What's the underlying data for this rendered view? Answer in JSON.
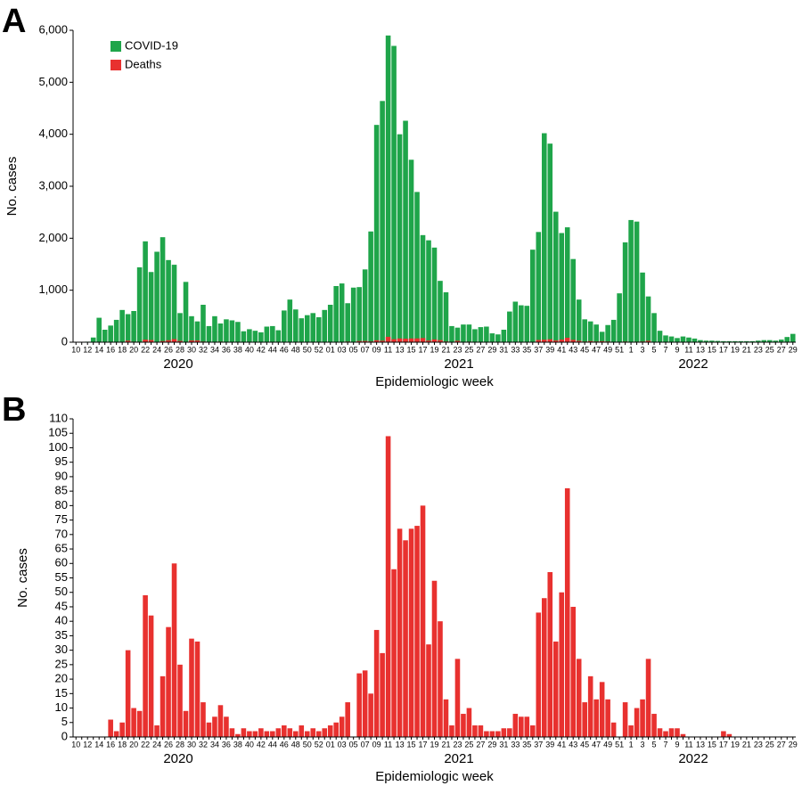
{
  "chart_data": [
    {
      "type": "bar",
      "panel_label": "A",
      "y_label": "No. cases",
      "x_label": "Epidemiologic week",
      "years": [
        "2020",
        "2021",
        "2022"
      ],
      "legend": "upper left",
      "categories": [
        "10",
        null,
        "12",
        null,
        "14",
        null,
        "16",
        null,
        "18",
        null,
        "20",
        null,
        "22",
        null,
        "24",
        null,
        "26",
        null,
        "28",
        null,
        "30",
        null,
        "32",
        null,
        "34",
        null,
        "36",
        null,
        "38",
        null,
        "40",
        null,
        "42",
        null,
        "44",
        null,
        "46",
        null,
        "48",
        null,
        "50",
        null,
        "52",
        null,
        "01",
        null,
        "03",
        null,
        "05",
        null,
        "07",
        null,
        "09",
        null,
        "11",
        null,
        "13",
        null,
        "15",
        null,
        "17",
        null,
        "19",
        null,
        "21",
        null,
        "23",
        null,
        "25",
        null,
        "27",
        null,
        "29",
        null,
        "31",
        null,
        "33",
        null,
        "35",
        null,
        "37",
        null,
        "39",
        null,
        "41",
        null,
        "43",
        null,
        "45",
        null,
        "47",
        null,
        "49",
        null,
        "51",
        null,
        "1",
        null,
        "3",
        null,
        "5",
        null,
        "7",
        null,
        "9",
        null,
        "11",
        null,
        "13",
        null,
        "15",
        null,
        "17",
        null,
        "19",
        null,
        "21",
        null,
        "23",
        null,
        "25",
        null,
        "27",
        null,
        "29"
      ],
      "series": [
        {
          "name": "COVID-19",
          "color": "#1fa54a",
          "values": [
            0,
            0,
            10,
            90,
            470,
            240,
            320,
            430,
            620,
            540,
            600,
            1440,
            1940,
            1350,
            1740,
            2020,
            1580,
            1490,
            560,
            1160,
            500,
            400,
            720,
            310,
            500,
            360,
            440,
            420,
            390,
            210,
            250,
            220,
            190,
            300,
            310,
            230,
            610,
            820,
            630,
            460,
            520,
            560,
            480,
            620,
            720,
            1080,
            1130,
            750,
            1050,
            1060,
            1400,
            2130,
            4180,
            4640,
            5900,
            5700,
            4000,
            4260,
            3510,
            2890,
            2060,
            1960,
            1820,
            1180,
            960,
            310,
            280,
            340,
            340,
            250,
            290,
            300,
            170,
            150,
            240,
            590,
            780,
            710,
            700,
            1780,
            2120,
            4020,
            3820,
            2510,
            2100,
            2210,
            1600,
            820,
            440,
            400,
            340,
            200,
            330,
            430,
            940,
            1920,
            2350,
            2320,
            1340,
            880,
            560,
            220,
            130,
            110,
            80,
            110,
            90,
            70,
            40,
            30,
            30,
            25,
            20,
            20,
            20,
            20,
            20,
            20,
            30,
            40,
            40,
            30,
            50,
            100,
            160
          ]
        },
        {
          "name": "Deaths",
          "color": "#e8312f",
          "values": [
            0,
            0,
            0,
            0,
            0,
            0,
            6,
            2,
            5,
            30,
            10,
            9,
            49,
            42,
            4,
            21,
            38,
            60,
            25,
            9,
            34,
            33,
            12,
            5,
            7,
            11,
            7,
            3,
            1,
            3,
            2,
            2,
            3,
            2,
            2,
            3,
            4,
            3,
            2,
            4,
            2,
            3,
            2,
            3,
            4,
            5,
            7,
            12,
            0,
            22,
            23,
            15,
            37,
            29,
            104,
            58,
            72,
            68,
            72,
            73,
            80,
            32,
            54,
            40,
            13,
            4,
            27,
            8,
            10,
            4,
            4,
            2,
            2,
            2,
            3,
            3,
            8,
            7,
            7,
            4,
            43,
            48,
            57,
            33,
            50,
            86,
            45,
            27,
            12,
            21,
            13,
            19,
            13,
            5,
            0,
            12,
            4,
            10,
            13,
            27,
            8,
            3,
            2,
            3,
            3,
            1,
            0,
            0,
            0,
            0,
            0,
            0,
            2,
            1,
            0,
            0,
            0,
            0,
            0,
            0,
            0,
            0,
            0,
            0,
            0
          ]
        }
      ],
      "ylim": [
        0,
        6000
      ],
      "yticks": [
        0,
        {
          "value": 1000,
          "label": "1,000"
        },
        {
          "value": 2000,
          "label": "2,000"
        },
        {
          "value": 3000,
          "label": "3,000"
        },
        {
          "value": 4000,
          "label": "4,000"
        },
        {
          "value": 5000,
          "label": "5,000"
        },
        {
          "value": 6000,
          "label": "6,000"
        }
      ]
    },
    {
      "type": "bar",
      "panel_label": "B",
      "y_label": "No. cases",
      "x_label": "Epidemiologic week",
      "years": [
        "2020",
        "2021",
        "2022"
      ],
      "categories": [
        "10",
        null,
        "12",
        null,
        "14",
        null,
        "16",
        null,
        "18",
        null,
        "20",
        null,
        "22",
        null,
        "24",
        null,
        "26",
        null,
        "28",
        null,
        "30",
        null,
        "32",
        null,
        "34",
        null,
        "36",
        null,
        "38",
        null,
        "40",
        null,
        "42",
        null,
        "44",
        null,
        "46",
        null,
        "48",
        null,
        "50",
        null,
        "52",
        null,
        "01",
        null,
        "03",
        null,
        "05",
        null,
        "07",
        null,
        "09",
        null,
        "11",
        null,
        "13",
        null,
        "15",
        null,
        "17",
        null,
        "19",
        null,
        "21",
        null,
        "23",
        null,
        "25",
        null,
        "27",
        null,
        "29",
        null,
        "31",
        null,
        "33",
        null,
        "35",
        null,
        "37",
        null,
        "39",
        null,
        "41",
        null,
        "43",
        null,
        "45",
        null,
        "47",
        null,
        "49",
        null,
        "51",
        null,
        "1",
        null,
        "3",
        null,
        "5",
        null,
        "7",
        null,
        "9",
        null,
        "11",
        null,
        "13",
        null,
        "15",
        null,
        "17",
        null,
        "19",
        null,
        "21",
        null,
        "23",
        null,
        "25",
        null,
        "27",
        null,
        "29"
      ],
      "color": "#e8312f",
      "values": [
        0,
        0,
        0,
        0,
        0,
        0,
        6,
        2,
        5,
        30,
        10,
        9,
        49,
        42,
        4,
        21,
        38,
        60,
        25,
        9,
        34,
        33,
        12,
        5,
        7,
        11,
        7,
        3,
        1,
        3,
        2,
        2,
        3,
        2,
        2,
        3,
        4,
        3,
        2,
        4,
        2,
        3,
        2,
        3,
        4,
        5,
        7,
        12,
        0,
        22,
        23,
        15,
        37,
        29,
        104,
        58,
        72,
        68,
        72,
        73,
        80,
        32,
        54,
        40,
        13,
        4,
        27,
        8,
        10,
        4,
        4,
        2,
        2,
        2,
        3,
        3,
        8,
        7,
        7,
        4,
        43,
        48,
        57,
        33,
        50,
        86,
        45,
        27,
        12,
        21,
        13,
        19,
        13,
        5,
        0,
        12,
        4,
        10,
        13,
        27,
        8,
        3,
        2,
        3,
        3,
        1,
        0,
        0,
        0,
        0,
        0,
        0,
        2,
        1,
        0,
        0,
        0,
        0,
        0,
        0,
        0,
        0,
        0,
        0,
        0
      ],
      "ylim": [
        0,
        110
      ],
      "yticks": [
        0,
        5,
        10,
        15,
        20,
        25,
        30,
        35,
        40,
        45,
        50,
        55,
        60,
        65,
        70,
        75,
        80,
        85,
        90,
        95,
        100,
        105,
        110
      ]
    }
  ]
}
